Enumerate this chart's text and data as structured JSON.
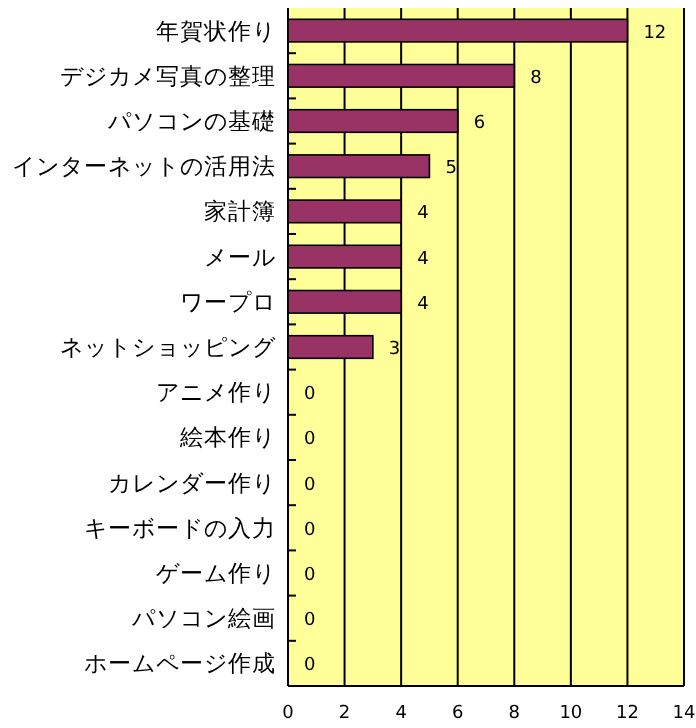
{
  "chart_data": {
    "type": "bar",
    "orientation": "horizontal",
    "categories": [
      "年賀状作り",
      "デジカメ写真の整理",
      "パソコンの基礎",
      "インターネットの活用法",
      "家計簿",
      "メール",
      "ワープロ",
      "ネットショッピング",
      "アニメ作り",
      "絵本作り",
      "カレンダー作り",
      "キーボードの入力",
      "ゲーム作り",
      "パソコン絵画",
      "ホームページ作成"
    ],
    "values": [
      12,
      8,
      6,
      5,
      4,
      4,
      4,
      3,
      0,
      0,
      0,
      0,
      0,
      0,
      0
    ],
    "color": "#993366",
    "xlim": [
      0,
      14
    ],
    "xticks": [
      0,
      2,
      4,
      6,
      8,
      10,
      12,
      14
    ],
    "grid": "x",
    "data_labels": true
  }
}
